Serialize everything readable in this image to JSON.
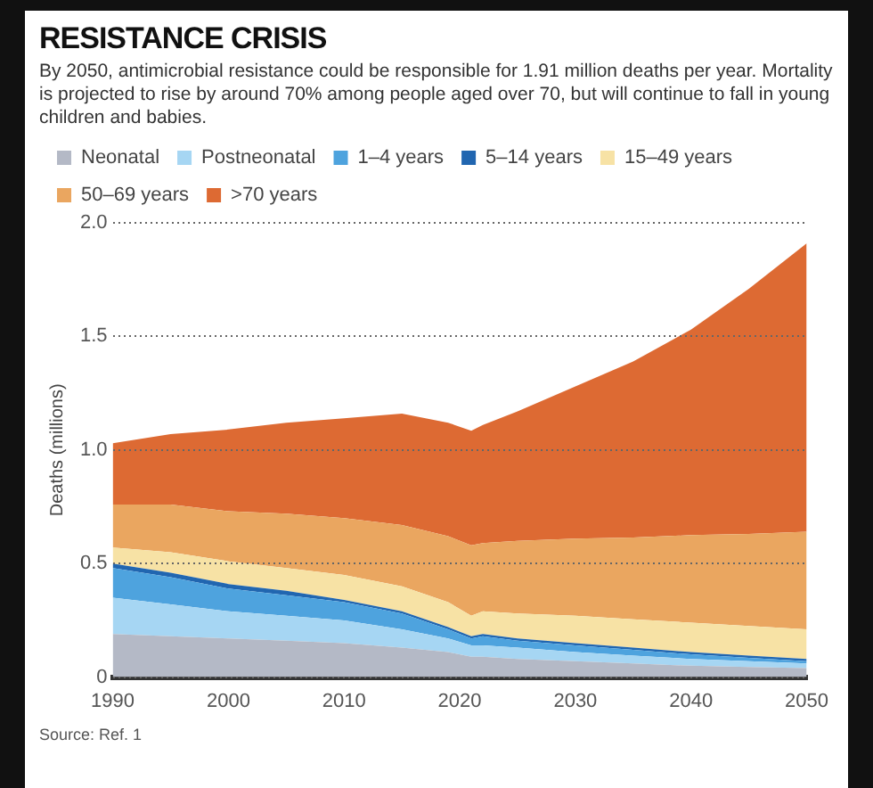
{
  "chart_data": {
    "type": "area",
    "title": "RESISTANCE CRISIS",
    "subtitle": "By 2050, antimicrobial resistance could be responsible for 1.91 million deaths per year. Mortality is projected to rise by around 70% among people aged over 70, but will continue to fall in young children and babies.",
    "ylabel": "Deaths (millions)",
    "annotations": [
      "Source: Ref. 1"
    ],
    "x": [
      1990,
      1995,
      2000,
      2005,
      2010,
      2015,
      2019,
      2021,
      2022,
      2025,
      2030,
      2035,
      2040,
      2045,
      2050
    ],
    "stacked": true,
    "series": [
      {
        "name": "Neonatal",
        "color": "#b4b9c6",
        "values": [
          0.19,
          0.18,
          0.17,
          0.16,
          0.15,
          0.13,
          0.11,
          0.09,
          0.09,
          0.08,
          0.07,
          0.06,
          0.05,
          0.045,
          0.04
        ]
      },
      {
        "name": "Postneonatal",
        "color": "#a6d6f3",
        "values": [
          0.16,
          0.14,
          0.12,
          0.11,
          0.1,
          0.08,
          0.06,
          0.05,
          0.05,
          0.05,
          0.04,
          0.035,
          0.03,
          0.025,
          0.02
        ]
      },
      {
        "name": "1–4 years",
        "color": "#4ea3de",
        "values": [
          0.13,
          0.12,
          0.1,
          0.09,
          0.08,
          0.07,
          0.04,
          0.03,
          0.04,
          0.03,
          0.03,
          0.025,
          0.02,
          0.015,
          0.01
        ]
      },
      {
        "name": "5–14 years",
        "color": "#2166b0",
        "values": [
          0.02,
          0.02,
          0.02,
          0.02,
          0.01,
          0.01,
          0.01,
          0.01,
          0.01,
          0.01,
          0.01,
          0.01,
          0.01,
          0.01,
          0.01
        ]
      },
      {
        "name": "15–49 years",
        "color": "#f7e2a5",
        "values": [
          0.07,
          0.09,
          0.1,
          0.1,
          0.11,
          0.11,
          0.11,
          0.09,
          0.1,
          0.11,
          0.12,
          0.125,
          0.13,
          0.13,
          0.13
        ]
      },
      {
        "name": "50–69 years",
        "color": "#eaa660",
        "values": [
          0.19,
          0.21,
          0.22,
          0.24,
          0.25,
          0.27,
          0.29,
          0.31,
          0.3,
          0.32,
          0.34,
          0.36,
          0.385,
          0.405,
          0.43
        ]
      },
      {
        "name": ">70 years",
        "color": "#dd6a33",
        "values": [
          0.27,
          0.31,
          0.36,
          0.4,
          0.44,
          0.49,
          0.5,
          0.505,
          0.52,
          0.57,
          0.67,
          0.775,
          0.905,
          1.08,
          1.27
        ]
      }
    ],
    "xlim": [
      1990,
      2050
    ],
    "xticks": [
      1990,
      2000,
      2010,
      2020,
      2030,
      2040,
      2050
    ],
    "ylim": [
      0,
      2.0
    ],
    "yticks": [
      0,
      {
        "value": 0.5,
        "label": "0.5"
      },
      {
        "value": 1.0,
        "label": "1.0"
      },
      {
        "value": 1.5,
        "label": "1.5"
      },
      {
        "value": 2.0,
        "label": "2.0"
      }
    ],
    "grid": "y",
    "legend": "top left"
  }
}
